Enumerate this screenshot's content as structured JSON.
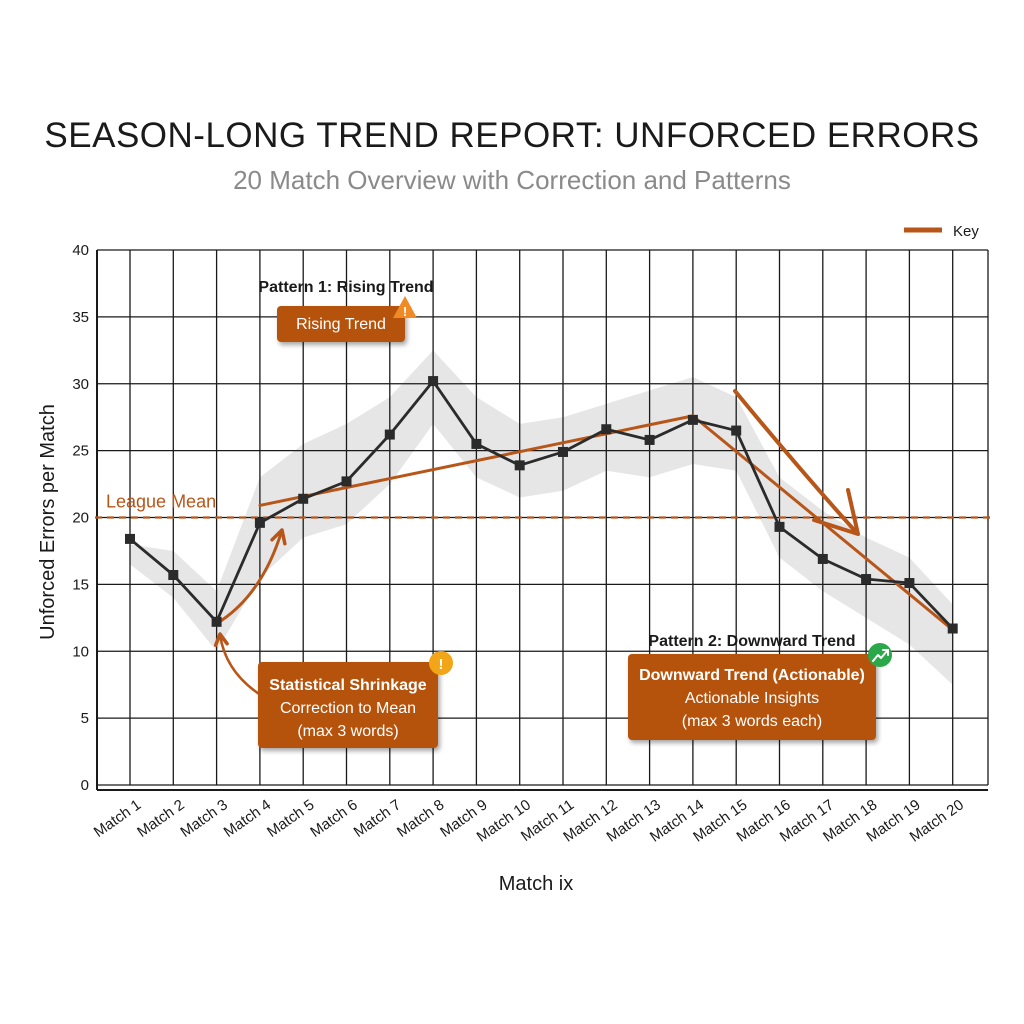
{
  "chart_data": {
    "type": "line",
    "title": "SEASON-LONG TREND REPORT: UNFORCED ERRORS",
    "subtitle": "20 Match Overview with Correction and Patterns",
    "xlabel": "Match ix",
    "ylabel": "Unforced Errors per Match",
    "ylim": [
      0,
      40
    ],
    "yticks": [
      "0",
      "5",
      "10",
      "15",
      "20",
      "25",
      "30",
      "35",
      "40"
    ],
    "grid": true,
    "legend": {
      "position": "top-right",
      "entries": [
        "Key"
      ]
    },
    "categories": [
      "Match 1",
      "Match 2",
      "Match 3",
      "Match 4",
      "Match 5",
      "Match 6",
      "Match 7",
      "Match 8",
      "Match 9",
      "Match 10",
      "Match 11",
      "Match 12",
      "Match 13",
      "Match 14",
      "Match 15",
      "Match 16",
      "Match 17",
      "Match 18",
      "Match 19",
      "Match 20"
    ],
    "series": [
      {
        "values": [
          18.4,
          15.7,
          12.2,
          19.6,
          21.4,
          22.7,
          26.2,
          30.2,
          25.5,
          23.9,
          24.9,
          26.6,
          25.8,
          27.3,
          26.5,
          19.3,
          16.9,
          15.4,
          15.1,
          11.7
        ]
      }
    ],
    "band": {
      "upper": [
        18.0,
        17.5,
        14.5,
        23.0,
        25.5,
        27.0,
        29.0,
        32.5,
        29.0,
        27.0,
        27.5,
        28.5,
        29.5,
        30.5,
        29.0,
        23.0,
        20.5,
        18.5,
        17.0,
        13.5
      ],
      "lower": [
        16.5,
        14.0,
        10.0,
        15.5,
        18.5,
        19.5,
        22.5,
        27.0,
        23.0,
        21.5,
        22.0,
        23.5,
        23.0,
        24.0,
        23.5,
        17.0,
        14.5,
        12.5,
        10.5,
        7.5
      ]
    },
    "reference_line": {
      "label": "League Mean",
      "value": 20
    },
    "trend_lines": [
      {
        "from": [
          4,
          20.9
        ],
        "to": [
          14,
          27.6
        ]
      },
      {
        "from": [
          14,
          27.6
        ],
        "to": [
          20,
          11.6
        ]
      }
    ],
    "annotations": {
      "pattern1_title": "Pattern 1: Rising Trend",
      "pattern1_box": "Rising Trend",
      "pattern2_title": "Pattern 2: Downward Trend",
      "pattern2_box_title": "Downward Trend (Actionable)",
      "pattern2_box_line1": "Actionable Insights",
      "pattern2_box_line2": "(max 3 words each)",
      "shrink_box_title": "Statistical Shrinkage",
      "shrink_box_line1": "Correction to Mean",
      "shrink_box_line2": "(max 3 words)",
      "warning_icon": "warning-triangle-icon",
      "alert_icon": "exclamation-circle-icon",
      "trend_icon": "trend-up-circle-icon"
    },
    "colors": {
      "accent": "#b8561a",
      "box": "#b5520f",
      "line": "#2b2b2b",
      "band": "#e2e2e2",
      "warning": "#f08a24",
      "alert": "#f2a516",
      "success": "#2aa84a"
    }
  }
}
